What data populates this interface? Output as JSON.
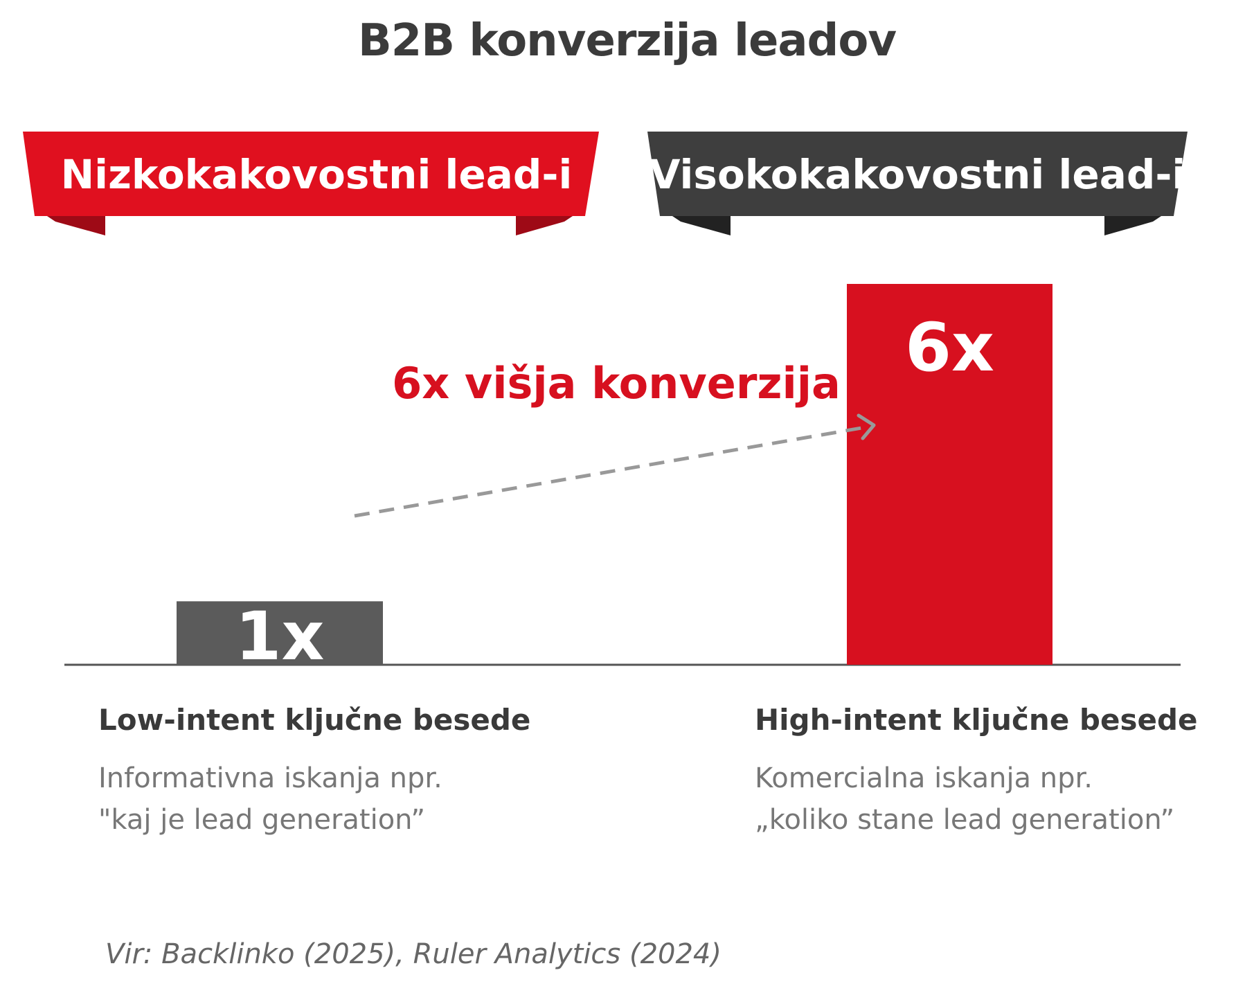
{
  "chart_data": {
    "type": "bar",
    "title": "B2B konverzija leadov",
    "categories": [
      "Low-intent ključne besede",
      "High-intent ključne besede"
    ],
    "values": [
      1,
      6
    ],
    "data_labels": [
      "1x",
      "6x"
    ],
    "group_headers": [
      "Nizkokakovostni lead-i",
      "Visokokakovostni lead-i"
    ],
    "descriptions": [
      [
        "Informativna iskanja npr.",
        "\"kaj je lead generation”"
      ],
      [
        "Komercialna iskanja npr.",
        "„koliko stane lead generation”"
      ]
    ],
    "annotation": "6x višja konverzija",
    "ylim": [
      0,
      6
    ],
    "grid": false,
    "colors": {
      "low_bar": "#5b5b5b",
      "high_bar": "#d7101f",
      "low_banner": "#e0101f",
      "high_banner": "#3e3e3e",
      "arrow": "#999999"
    },
    "source": "Vir: Backlinko (2025), Ruler Analytics (2024)"
  }
}
